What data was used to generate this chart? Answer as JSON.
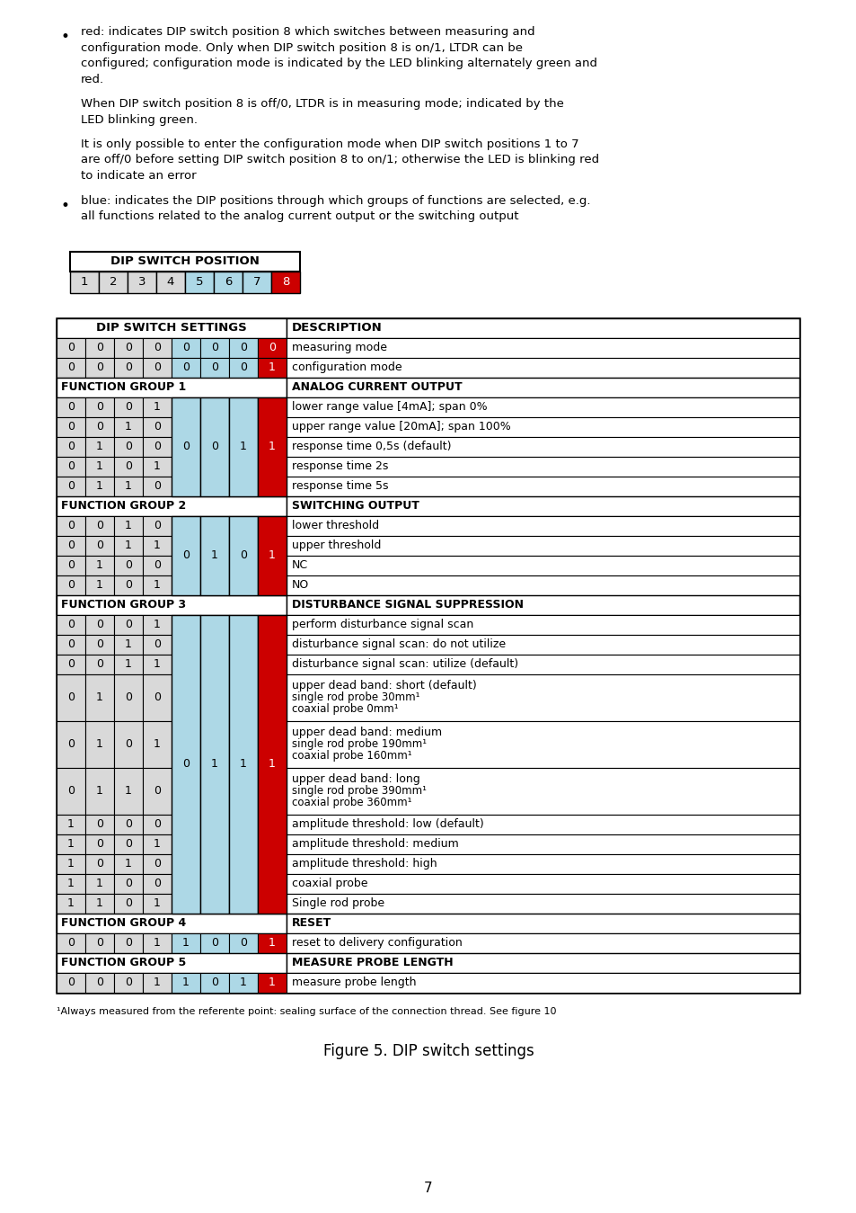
{
  "title": "Figure 5. DIP switch settings",
  "page_number": "7",
  "colors": {
    "white": "#ffffff",
    "gray": "#d9d9d9",
    "blue": "#add8e6",
    "red": "#cc0000",
    "black": "#000000"
  },
  "dip_position_colors": [
    "#d9d9d9",
    "#d9d9d9",
    "#d9d9d9",
    "#d9d9d9",
    "#add8e6",
    "#add8e6",
    "#add8e6",
    "#cc0000"
  ],
  "bullet1_lines": [
    "red: indicates DIP switch position 8 which switches between measuring and",
    "configuration mode. Only when DIP switch position 8 is on/1, LTDR can be",
    "configured; configuration mode is indicated by the LED blinking alternately green and",
    "red."
  ],
  "cont1_lines": [
    "When DIP switch position 8 is off/0, LTDR is in measuring mode; indicated by the",
    "LED blinking green."
  ],
  "cont2_lines": [
    "It is only possible to enter the configuration mode when DIP switch positions 1 to 7",
    "are off/0 before setting DIP switch position 8 to on/1; otherwise the LED is blinking red",
    "to indicate an error"
  ],
  "bullet2_lines": [
    "blue: indicates the DIP positions through which groups of functions are selected, e.g.",
    "all functions related to the analog current output or the switching output"
  ],
  "footnote": "¹Always measured from the referente point: sealing surface of the connection thread. See figure 10"
}
